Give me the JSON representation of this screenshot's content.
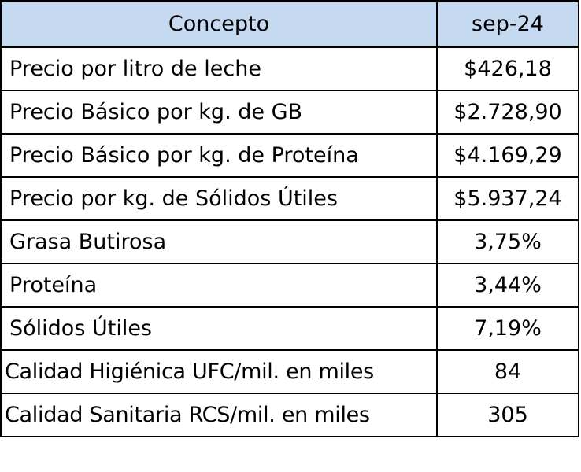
{
  "table": {
    "headers": {
      "concept": "Concepto",
      "period": "sep-24"
    },
    "rows": [
      {
        "concept": "Precio por litro de leche",
        "value": "$426,18"
      },
      {
        "concept": "Precio Básico por kg. de GB",
        "value": "$2.728,90"
      },
      {
        "concept": "Precio Básico por kg. de Proteína",
        "value": "$4.169,29"
      },
      {
        "concept": "Precio por kg. de Sólidos Útiles",
        "value": "$5.937,24"
      },
      {
        "concept": "Grasa Butirosa",
        "value": "3,75%"
      },
      {
        "concept": "Proteína",
        "value": "3,44%"
      },
      {
        "concept": "Sólidos Útiles",
        "value": "7,19%"
      },
      {
        "concept": "Calidad Higiénica UFC/mil. en miles",
        "value": "84"
      },
      {
        "concept": "Calidad Sanitaria RCS/mil. en miles",
        "value": "305"
      }
    ],
    "header_color": "#c5d9f1",
    "border_color": "#000000"
  }
}
